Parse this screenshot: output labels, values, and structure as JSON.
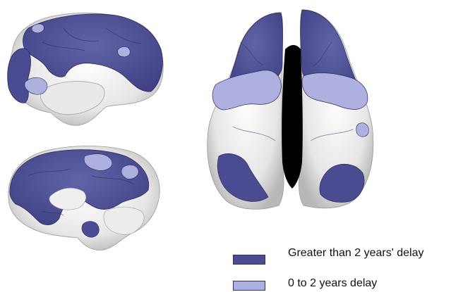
{
  "legend": {
    "items": [
      {
        "label": "Greater than 2 years' delay",
        "color": "#4a4b90"
      },
      {
        "label": "0 to 2 years delay",
        "color": "#aeb0e0"
      }
    ]
  },
  "colors": {
    "cortex_white": "#f2f2f2",
    "cortex_shadow": "#bdbdbd",
    "midline_black": "#000000",
    "delay_high": "#4a4b90",
    "delay_low": "#aeb0e0",
    "outline": "#2a2a5a"
  }
}
